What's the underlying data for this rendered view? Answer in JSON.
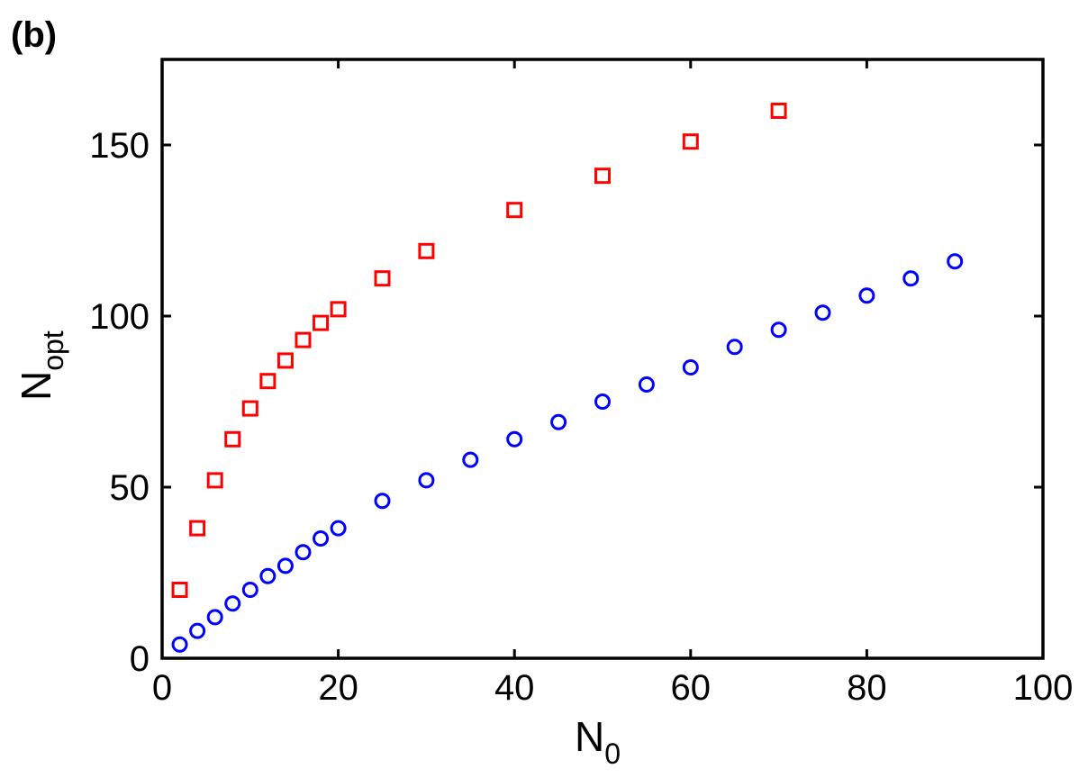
{
  "panel_label": "(b)",
  "chart_data": {
    "type": "scatter",
    "title": "",
    "xlabel": {
      "main": "N",
      "sub": "0"
    },
    "ylabel": {
      "main": "N",
      "sub": "opt"
    },
    "xlim": [
      0,
      100
    ],
    "ylim": [
      0,
      175
    ],
    "xticks": [
      0,
      20,
      40,
      60,
      80,
      100
    ],
    "yticks": [
      0,
      50,
      100,
      150
    ],
    "grid": false,
    "series": [
      {
        "marker": "square",
        "color": "#ff0000",
        "x": [
          2,
          4,
          6,
          8,
          10,
          12,
          14,
          16,
          18,
          20,
          25,
          30,
          40,
          50,
          60,
          70
        ],
        "y": [
          20,
          38,
          52,
          64,
          73,
          81,
          87,
          93,
          98,
          102,
          111,
          119,
          131,
          141,
          151,
          160
        ]
      },
      {
        "marker": "circle",
        "color": "#0000ff",
        "x": [
          2,
          4,
          6,
          8,
          10,
          12,
          14,
          16,
          18,
          20,
          25,
          30,
          35,
          40,
          45,
          50,
          55,
          60,
          65,
          70,
          75,
          80,
          85,
          90
        ],
        "y": [
          4,
          8,
          12,
          16,
          20,
          24,
          27,
          31,
          35,
          38,
          46,
          52,
          58,
          64,
          69,
          75,
          80,
          85,
          91,
          96,
          101,
          106,
          111,
          116
        ]
      }
    ]
  }
}
